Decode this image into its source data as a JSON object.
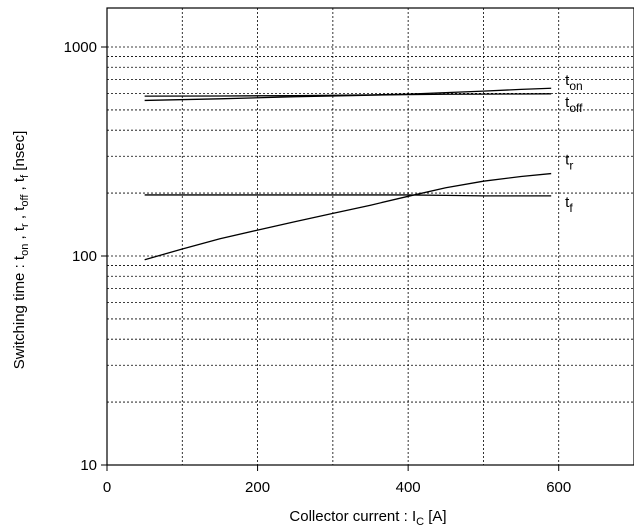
{
  "chart_data": {
    "type": "line",
    "xlabel": {
      "main": "Collector current : I",
      "sub": "C",
      "tail": " [A]"
    },
    "ylabel": {
      "parts": [
        {
          "t": "Switching time : t",
          "sub": false
        },
        {
          "t": "on",
          "sub": true
        },
        {
          "t": " , t",
          "sub": false
        },
        {
          "t": "r",
          "sub": true
        },
        {
          "t": " , t",
          "sub": false
        },
        {
          "t": "off",
          "sub": true
        },
        {
          "t": " , t",
          "sub": false
        },
        {
          "t": "f",
          "sub": true
        },
        {
          "t": " [nsec]",
          "sub": false
        }
      ]
    },
    "xlim": [
      0,
      700
    ],
    "ylim": [
      10,
      1000
    ],
    "yscale": "log",
    "grid": true,
    "x_ticks": [
      0,
      200,
      400,
      600
    ],
    "x_tick_labels": [
      "0",
      "200",
      "400",
      "600"
    ],
    "x_grid": [
      100,
      200,
      300,
      400,
      500,
      600
    ],
    "y_ticks": [
      10,
      100,
      1000
    ],
    "y_tick_labels": [
      "10",
      "100",
      "1000"
    ],
    "y_grid": [
      20,
      30,
      40,
      50,
      60,
      70,
      80,
      90,
      100,
      200,
      300,
      400,
      500,
      600,
      700,
      800,
      900,
      1000
    ],
    "series": [
      {
        "name": "t",
        "sub": "on",
        "x": [
          50,
          150,
          250,
          350,
          400,
          450,
          500,
          550,
          590
        ],
        "y": [
          582,
          583,
          585,
          590,
          595,
          605,
          615,
          627,
          635
        ]
      },
      {
        "name": "t",
        "sub": "off",
        "x": [
          50,
          150,
          250,
          350,
          400,
          450,
          500,
          550,
          590
        ],
        "y": [
          555,
          565,
          578,
          588,
          592,
          594,
          595,
          596,
          597
        ]
      },
      {
        "name": "t",
        "sub": "r",
        "x": [
          50,
          100,
          150,
          200,
          250,
          300,
          350,
          400,
          450,
          500,
          550,
          590
        ],
        "y": [
          96,
          108,
          121,
          133,
          146,
          160,
          175,
          193,
          212,
          228,
          240,
          248
        ]
      },
      {
        "name": "t",
        "sub": "f",
        "x": [
          50,
          150,
          250,
          350,
          400,
          450,
          500,
          550,
          590
        ],
        "y": [
          196,
          196,
          196,
          196,
          196,
          195,
          194,
          194,
          194
        ]
      }
    ]
  }
}
